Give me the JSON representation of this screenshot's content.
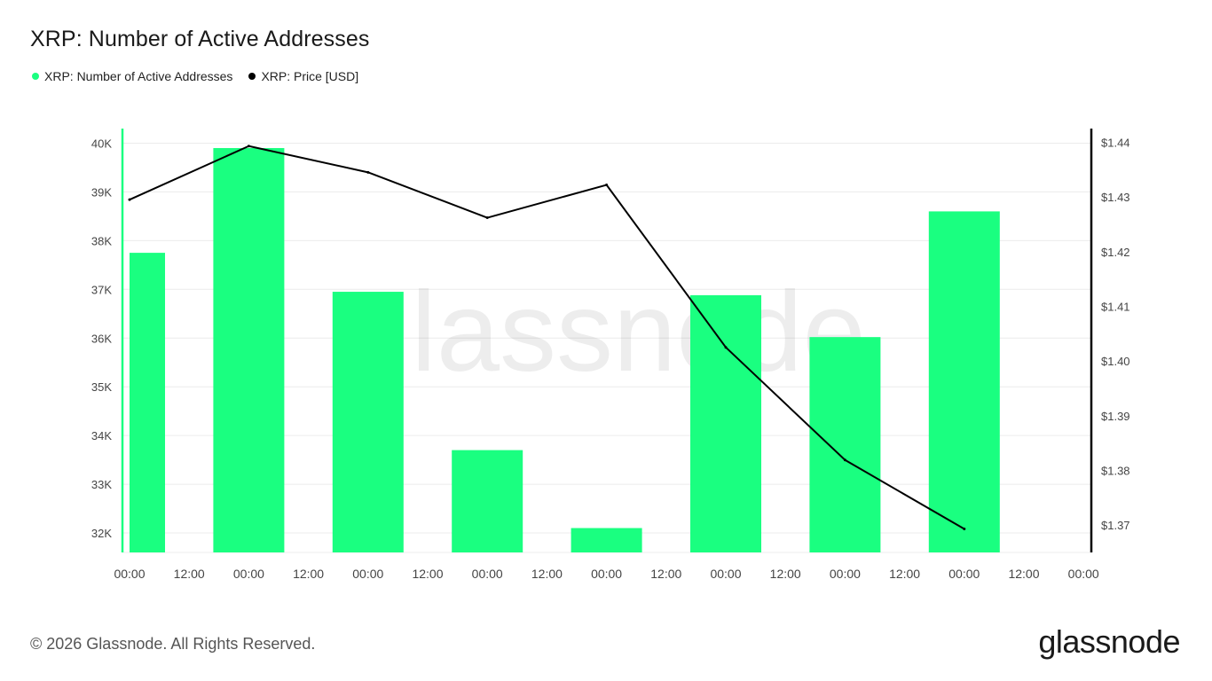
{
  "page": {
    "title": "XRP: Number of Active Addresses",
    "copyright": "© 2026 Glassnode. All Rights Reserved.",
    "logo_text": "glassnode",
    "watermark_text": "glassnode"
  },
  "legend": [
    {
      "label": "XRP: Number of Active Addresses",
      "color": "#1aff80"
    },
    {
      "label": "XRP: Price [USD]",
      "color": "#000000"
    }
  ],
  "chart_data": {
    "type": "bar",
    "title": "XRP: Number of Active Addresses",
    "xlabel": "",
    "ylabel": "",
    "grid": true,
    "legend_position": "top-left",
    "x_tick_labels": [
      "00:00",
      "12:00",
      "00:00",
      "12:00",
      "00:00",
      "12:00",
      "00:00",
      "12:00",
      "00:00",
      "12:00",
      "00:00",
      "12:00",
      "00:00",
      "12:00",
      "00:00",
      "12:00",
      "00:00"
    ],
    "y_left": {
      "ylim": [
        31600,
        40300
      ],
      "ticks": [
        32000,
        33000,
        34000,
        35000,
        36000,
        37000,
        38000,
        39000,
        40000
      ],
      "tick_labels": [
        "32K",
        "33K",
        "34K",
        "35K",
        "36K",
        "37K",
        "38K",
        "39K",
        "40K"
      ]
    },
    "y_right": {
      "ylim": [
        1.365,
        1.4425
      ],
      "ticks": [
        1.37,
        1.38,
        1.39,
        1.4,
        1.41,
        1.42,
        1.43,
        1.44
      ],
      "tick_labels": [
        "$1.37",
        "$1.38",
        "$1.39",
        "$1.40",
        "$1.41",
        "$1.42",
        "$1.43",
        "$1.44"
      ]
    },
    "series": [
      {
        "name": "XRP: Number of Active Addresses",
        "type": "bar",
        "axis": "left",
        "color": "#1aff80",
        "x_index": [
          0,
          2,
          4,
          6,
          8,
          10,
          12,
          14
        ],
        "values": [
          37750,
          39900,
          36950,
          33700,
          32100,
          36880,
          36020,
          38600
        ]
      },
      {
        "name": "XRP: Price [USD]",
        "type": "line",
        "axis": "right",
        "color": "#000000",
        "x_index": [
          0,
          2,
          4,
          6,
          8,
          10,
          12,
          14
        ],
        "values": [
          1.4295,
          1.4393,
          1.4345,
          1.4262,
          1.4322,
          1.4025,
          1.3819,
          1.3693
        ]
      }
    ]
  }
}
